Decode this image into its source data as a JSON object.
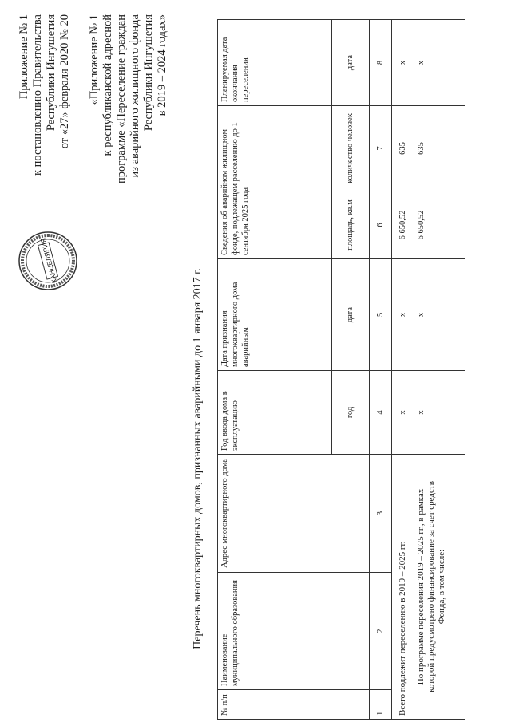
{
  "appendix_order": {
    "lines": [
      "Приложение № 1",
      "к постановлению Правительства",
      "Республики Ингушетия",
      "от «27» февраля 2020 № 20"
    ]
  },
  "appendix_program": {
    "lines": [
      "«Приложение № 1",
      "к республиканской адресной",
      "программе «Переселение граждан",
      "из аварийного жилищного фонда",
      "Республики Ингушетия",
      "в 2019 – 2024 годах»"
    ]
  },
  "stamp": {
    "text": "КАНЦЕЛЯРИЯ",
    "ring_text": "ПРАВИТЕЛЬСТВА РЕСПУБЛИКИ ИНГУШЕТИЯ"
  },
  "title": "Перечень многоквартирных домов, признанных аварийными до 1 января 2017 г.",
  "table": {
    "headers": {
      "num": "№ п/п",
      "municipality": "Наименование муниципального образования",
      "address": "Адрес многоквартирного дома",
      "year": "Год ввода дома в эксплуатацию",
      "emergency_date": "Дата признания многоквартирного дома аварийным",
      "housing": "Сведения об аварийном жилищном фонде, подлежащем расселению до 1 сентября 2025 года",
      "planned": "Планируемая дата окончания переселения"
    },
    "subheaders": {
      "year": "год",
      "emergency_date": "дата",
      "area": "площадь, кв.м",
      "people": "количество человек",
      "planned": "дата"
    },
    "column_numbers": [
      "1",
      "2",
      "3",
      "4",
      "5",
      "6",
      "7",
      "8"
    ],
    "total_row": {
      "label": "Всего подлежит переселению в 2019 – 2025 гг.",
      "year": "x",
      "date": "x",
      "area": "6 650,52",
      "people": "635",
      "planned": "x"
    },
    "program_row": {
      "label_lines": [
        "По программе переселения 2019 – 2025 гг., в рамках",
        "которой предусмотрено финансирование за счет средств",
        "Фонда, в том числе:"
      ],
      "year": "x",
      "date": "x",
      "area": "6 650,52",
      "people": "635",
      "planned": "x"
    }
  }
}
